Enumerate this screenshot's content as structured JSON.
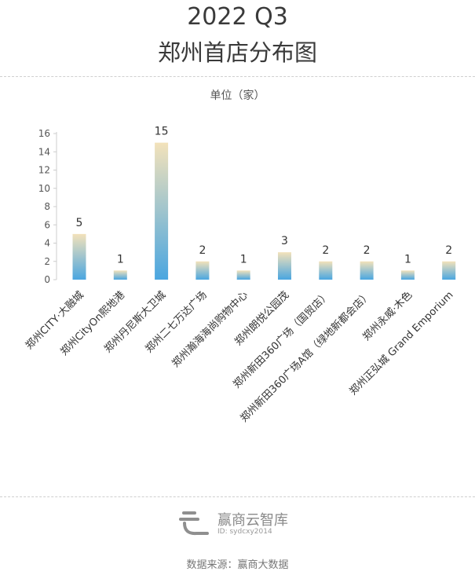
{
  "header": {
    "title_line1": "2022 Q3",
    "title_line2": "郑州首店分布图",
    "unit": "单位（家）"
  },
  "chart_data": {
    "type": "bar",
    "categories": [
      "郑州CITY·大融城",
      "郑州CityOn熙地港",
      "郑州丹尼斯大卫城",
      "郑州二七万达广场",
      "郑州瀚海海尚购物中心",
      "郑州朗悦公园茂",
      "郑州新田360广场（国贸店）",
      "郑州新田360广场A馆（绿地新都会店）",
      "郑州永威·木色",
      "郑州正弘城 Grand Emporium"
    ],
    "values": [
      5,
      1,
      15,
      2,
      1,
      3,
      2,
      2,
      1,
      2
    ],
    "ylim": [
      0,
      16
    ],
    "yticks": [
      0,
      2,
      4,
      6,
      8,
      10,
      12,
      14,
      16
    ],
    "grid": false,
    "colors": {
      "top": "#f3e2ba",
      "bottom": "#4aa6e0",
      "axis": "#cccccc"
    }
  },
  "branding": {
    "name": "赢商云智库",
    "id": "ID: sydcxy2014"
  },
  "footer": {
    "source": "数据来源：赢商大数据"
  }
}
